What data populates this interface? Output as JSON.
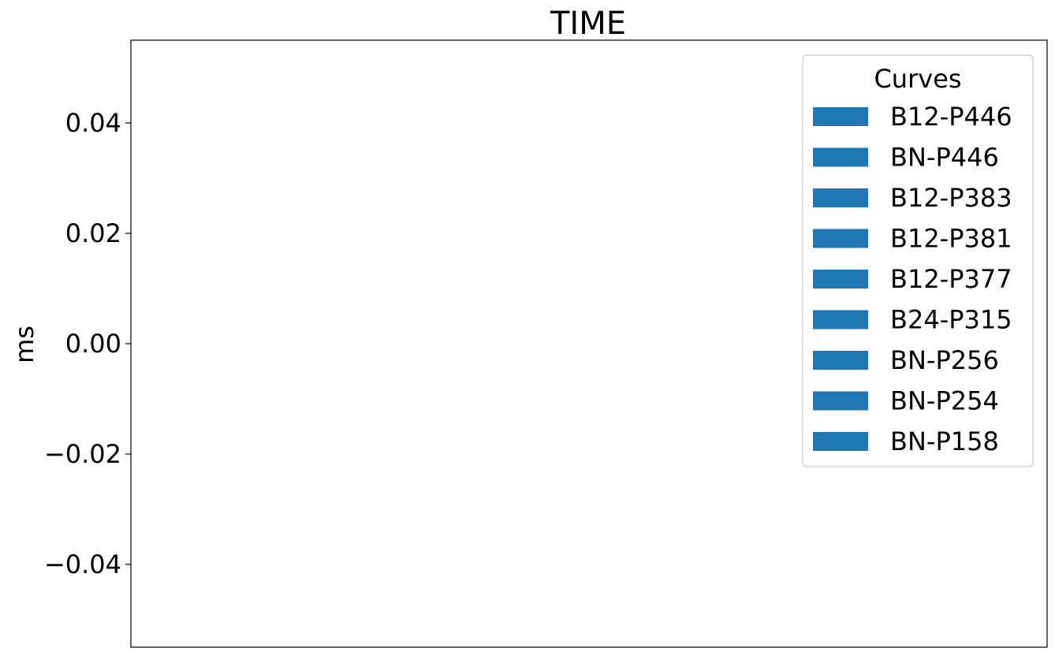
{
  "chart_data": {
    "type": "bar",
    "title": "TIME",
    "xlabel": "",
    "ylabel": "ms",
    "ylim": [
      -0.055,
      0.055
    ],
    "yticks": [
      0.04,
      0.02,
      0.0,
      -0.02,
      -0.04
    ],
    "ytick_labels": [
      "0.04",
      "0.02",
      "0.00",
      "−0.02",
      "−0.04"
    ],
    "grid": false,
    "legend": {
      "title": "Curves",
      "placement": "top-right",
      "entries": [
        "B12-P446",
        "BN-P446",
        "B12-P383",
        "B12-P381",
        "B12-P377",
        "B24-P315",
        "BN-P256",
        "BN-P254",
        "BN-P158"
      ]
    },
    "series_color": "#1f77b4",
    "series": []
  }
}
